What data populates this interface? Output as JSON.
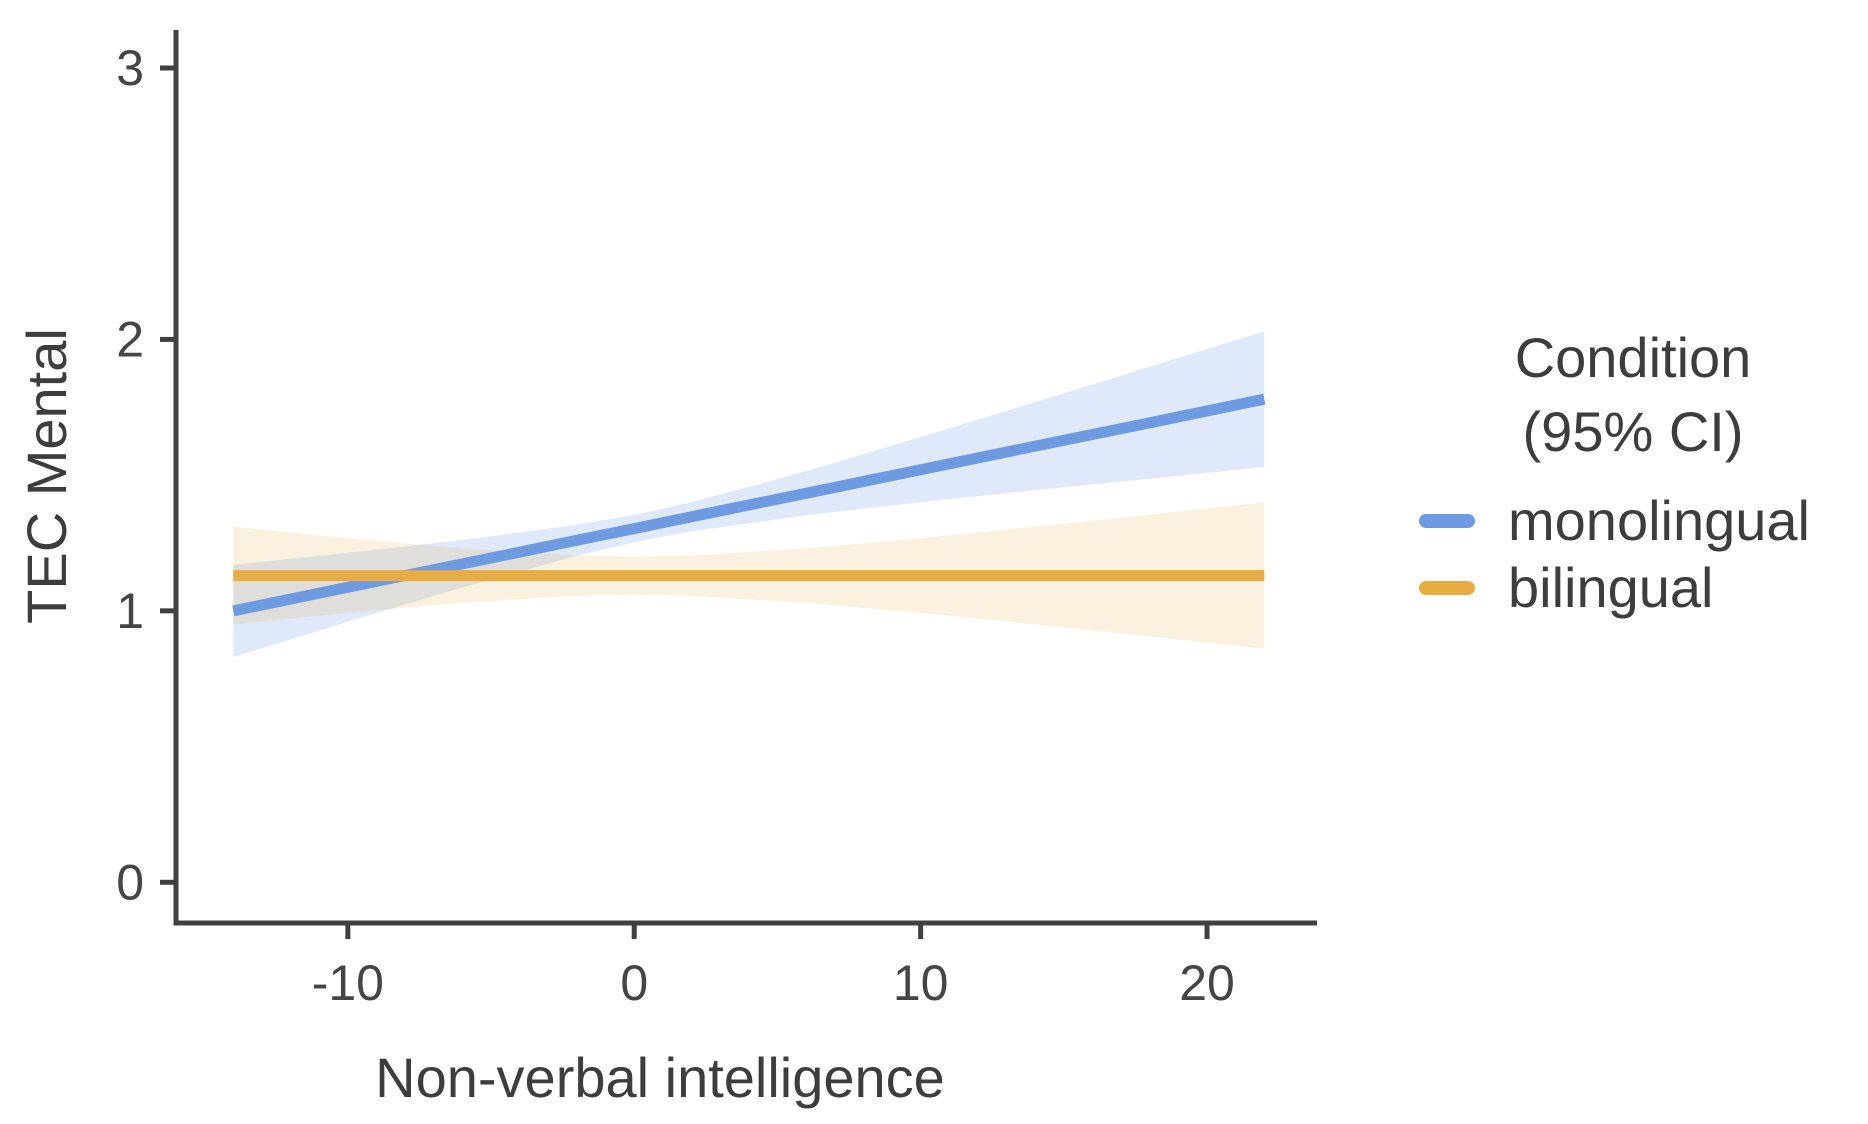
{
  "chart_data": {
    "type": "line",
    "title": "",
    "xlabel": "Non-verbal intelligence",
    "ylabel": "TEC Mental",
    "xlim": [
      -16,
      23.84
    ],
    "ylim": [
      -0.15,
      3.14
    ],
    "x_ticks": [
      "-10",
      "0",
      "10",
      "20"
    ],
    "x_tick_values": [
      -10,
      0,
      10,
      20
    ],
    "y_ticks": [
      "0",
      "1",
      "2",
      "3"
    ],
    "y_tick_values": [
      0,
      1,
      2,
      3
    ],
    "grid": false,
    "legend": {
      "title_lines": [
        "Condition",
        "(95% CI)"
      ],
      "position": "right"
    },
    "x": [
      -14,
      -10,
      -6,
      -2,
      0,
      2,
      6,
      10,
      14,
      18,
      22
    ],
    "series": [
      {
        "name": "monolingual",
        "color": "#6e9ae2",
        "values": [
          1.0,
          1.087,
          1.173,
          1.26,
          1.303,
          1.347,
          1.433,
          1.52,
          1.607,
          1.693,
          1.78
        ],
        "ci_lower": [
          0.83,
          0.96,
          1.086,
          1.203,
          1.253,
          1.293,
          1.352,
          1.4,
          1.445,
          1.487,
          1.53
        ],
        "ci_upper": [
          1.17,
          1.214,
          1.261,
          1.317,
          1.353,
          1.4,
          1.514,
          1.64,
          1.769,
          1.899,
          2.03
        ]
      },
      {
        "name": "bilingual",
        "color": "#e8ac44",
        "values": [
          1.13,
          1.13,
          1.13,
          1.13,
          1.13,
          1.13,
          1.13,
          1.13,
          1.13,
          1.13,
          1.13
        ],
        "ci_lower": [
          0.95,
          0.993,
          1.03,
          1.056,
          1.06,
          1.056,
          1.03,
          0.993,
          0.95,
          0.906,
          0.86
        ],
        "ci_upper": [
          1.31,
          1.267,
          1.23,
          1.204,
          1.2,
          1.204,
          1.23,
          1.267,
          1.31,
          1.354,
          1.4
        ]
      }
    ],
    "style": {
      "axis_color": "#404040",
      "band_opacity_monolingual": 0.22,
      "band_opacity_bilingual": 0.17,
      "line_width": 11
    }
  }
}
